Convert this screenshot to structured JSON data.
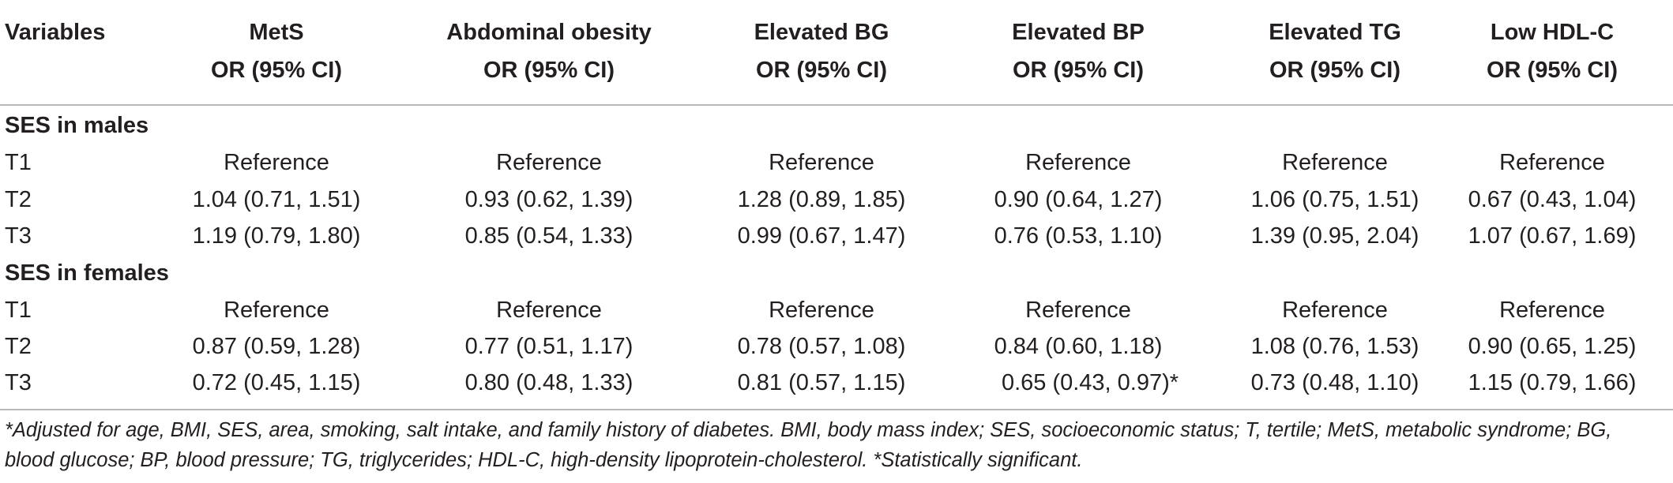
{
  "table": {
    "headers": [
      {
        "name": "Variables",
        "sub": ""
      },
      {
        "name": "MetS",
        "sub": "OR (95% CI)"
      },
      {
        "name": "Abdominal obesity",
        "sub": "OR (95% CI)"
      },
      {
        "name": "Elevated BG",
        "sub": "OR (95% CI)"
      },
      {
        "name": "Elevated BP",
        "sub": "OR (95% CI)"
      },
      {
        "name": "Elevated TG",
        "sub": "OR (95% CI)"
      },
      {
        "name": "Low HDL-C",
        "sub": "OR (95% CI)"
      }
    ],
    "sections": [
      {
        "title": "SES in males",
        "rows": [
          {
            "label": "T1",
            "cells": [
              "Reference",
              "Reference",
              "Reference",
              "Reference",
              "Reference",
              "Reference"
            ]
          },
          {
            "label": "T2",
            "cells": [
              "1.04 (0.71, 1.51)",
              "0.93 (0.62, 1.39)",
              "1.28 (0.89, 1.85)",
              "0.90 (0.64, 1.27)",
              "1.06 (0.75, 1.51)",
              "0.67 (0.43, 1.04)"
            ]
          },
          {
            "label": "T3",
            "cells": [
              "1.19 (0.79, 1.80)",
              "0.85 (0.54, 1.33)",
              "0.99 (0.67, 1.47)",
              "0.76 (0.53, 1.10)",
              "1.39 (0.95, 2.04)",
              "1.07 (0.67, 1.69)"
            ]
          }
        ]
      },
      {
        "title": "SES in females",
        "rows": [
          {
            "label": "T1",
            "cells": [
              "Reference",
              "Reference",
              "Reference",
              "Reference",
              "Reference",
              "Reference"
            ]
          },
          {
            "label": "T2",
            "cells": [
              "0.87 (0.59, 1.28)",
              "0.77 (0.51, 1.17)",
              "0.78 (0.57, 1.08)",
              "0.84 (0.60, 1.18)",
              "1.08 (0.76, 1.53)",
              "0.90 (0.65, 1.25)"
            ]
          },
          {
            "label": "T3",
            "cells": [
              "0.72 (0.45, 1.15)",
              "0.80 (0.48, 1.33)",
              "0.81 (0.57, 1.15)",
              "0.65 (0.43, 0.97)*",
              "0.73 (0.48, 1.10)",
              "1.15 (0.79, 1.66)"
            ]
          }
        ]
      }
    ]
  },
  "footnote": "*Adjusted for age, BMI, SES, area, smoking, salt intake, and family history of diabetes. BMI, body mass index; SES, socioeconomic status; T, tertile; MetS, metabolic syndrome; BG, blood glucose; BP, blood pressure; TG, triglycerides; HDL-C, high-density lipoprotein-cholesterol. *Statistically significant."
}
